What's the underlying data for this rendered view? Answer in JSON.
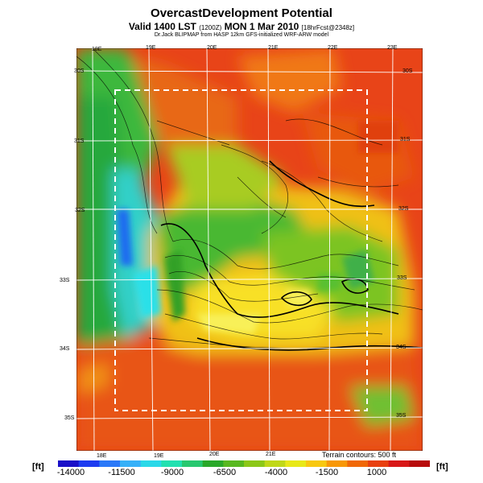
{
  "header": {
    "title": "OvercastDevelopment Potential",
    "valid_main": "Valid 1400 LST",
    "valid_paren": "(1200Z)",
    "valid_date": "MON 1 Mar 2010",
    "valid_fcst": "[18hrFcst@2348z]",
    "credit": "Dr.Jack BLIPMAP from HASP 12km GFS-initialized WRF-ARW model"
  },
  "map": {
    "top_lon_labels": [
      "18E",
      "19E",
      "20E",
      "21E",
      "22E",
      "23E"
    ],
    "bottom_lon_labels": [
      "18E",
      "19E",
      "20E",
      "21E"
    ],
    "left_lat_labels": [
      "30S",
      "31S",
      "32S",
      "33S",
      "34S",
      "35S"
    ],
    "right_lat_labels": [
      "30S",
      "31S",
      "32S",
      "33S",
      "34S",
      "35S"
    ],
    "terrain_note": "Terrain contours: 500 ft"
  },
  "colorbar": {
    "unit_label": "[ft]",
    "tick_labels": [
      "-14000",
      "-11500",
      "-9000",
      "-6500",
      "-4000",
      "-1500",
      "1000"
    ],
    "colors": [
      "#1a10c8",
      "#1e3cf0",
      "#2a78f8",
      "#36b0f8",
      "#2ad8e8",
      "#22e0b0",
      "#28c870",
      "#2aa82a",
      "#58b820",
      "#8cc818",
      "#c0d818",
      "#e8e818",
      "#f8c810",
      "#f89808",
      "#f06808",
      "#e84010",
      "#d81818",
      "#b80c0c"
    ]
  }
}
